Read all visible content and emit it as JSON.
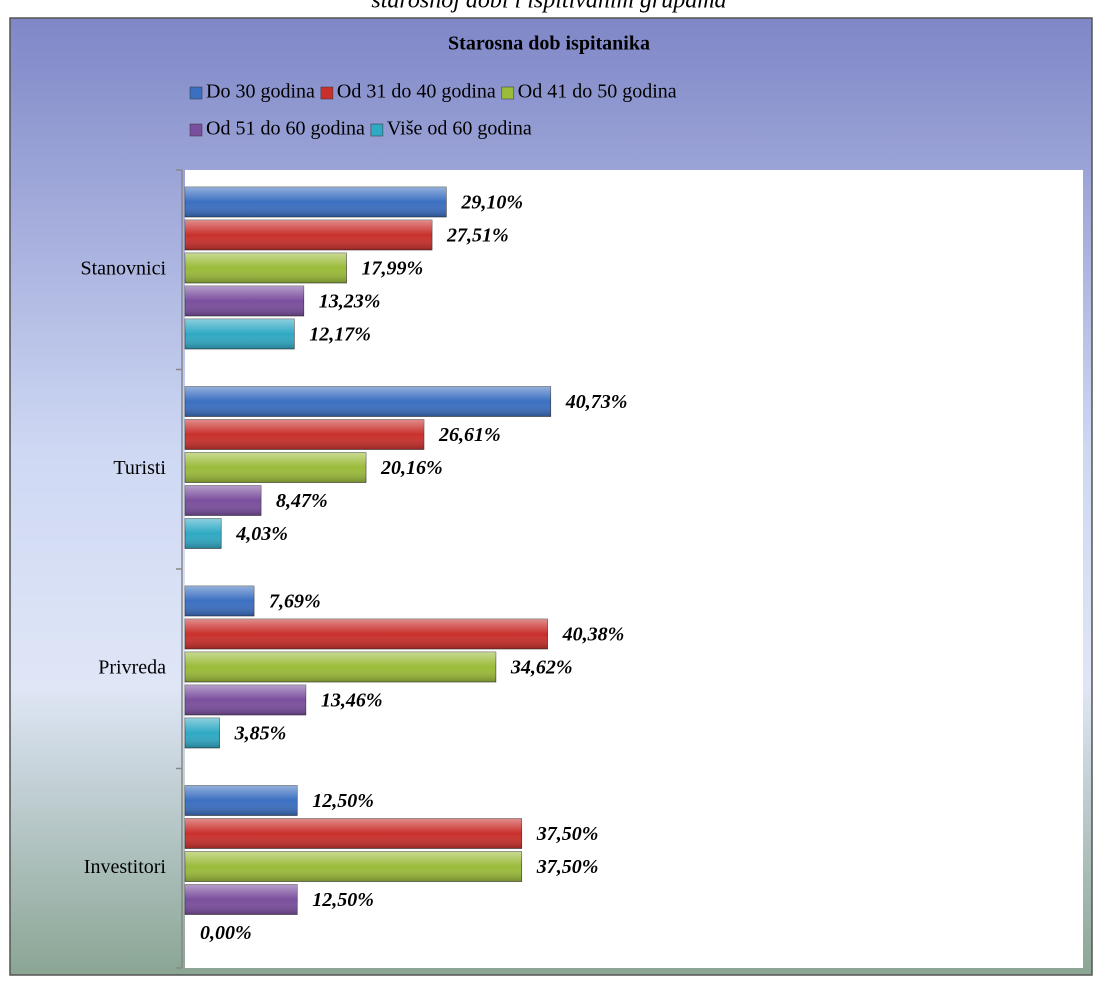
{
  "chart_data": {
    "type": "barh",
    "caption": "starosnoj dobi i ispitivanim grupama",
    "title": "Starosna dob ispitanika",
    "categories": [
      "Stanovnici",
      "Turisti",
      "Privreda",
      "Investitori"
    ],
    "series": [
      {
        "name": "Do 30 godina",
        "color": "#3b6fc1",
        "values": [
          29.1,
          40.73,
          7.69,
          12.5
        ],
        "value_labels": [
          "29,10%",
          "40,73%",
          "7,69%",
          "12,50%"
        ]
      },
      {
        "name": "Od 31 do 40 godina",
        "color": "#c9302c",
        "values": [
          27.51,
          26.61,
          40.38,
          37.5
        ],
        "value_labels": [
          "27,51%",
          "26,61%",
          "40,38%",
          "37,50%"
        ]
      },
      {
        "name": "Od 41 do 50 godina",
        "color": "#9bbb3a",
        "values": [
          17.99,
          20.16,
          34.62,
          37.5
        ],
        "value_labels": [
          "17,99%",
          "20,16%",
          "34,62%",
          "37,50%"
        ]
      },
      {
        "name": "Od 51 do 60 godina",
        "color": "#7a4f9e",
        "values": [
          13.23,
          8.47,
          13.46,
          12.5
        ],
        "value_labels": [
          "13,23%",
          "8,47%",
          "13,46%",
          "12,50%"
        ]
      },
      {
        "name": "Više od 60 godina",
        "color": "#2fa9c4",
        "values": [
          12.17,
          4.03,
          3.85,
          0.0
        ],
        "value_labels": [
          "12,17%",
          "4,03%",
          "3,85%",
          "0,00%"
        ]
      }
    ],
    "xlim": [
      0,
      100
    ],
    "legend": "top"
  }
}
